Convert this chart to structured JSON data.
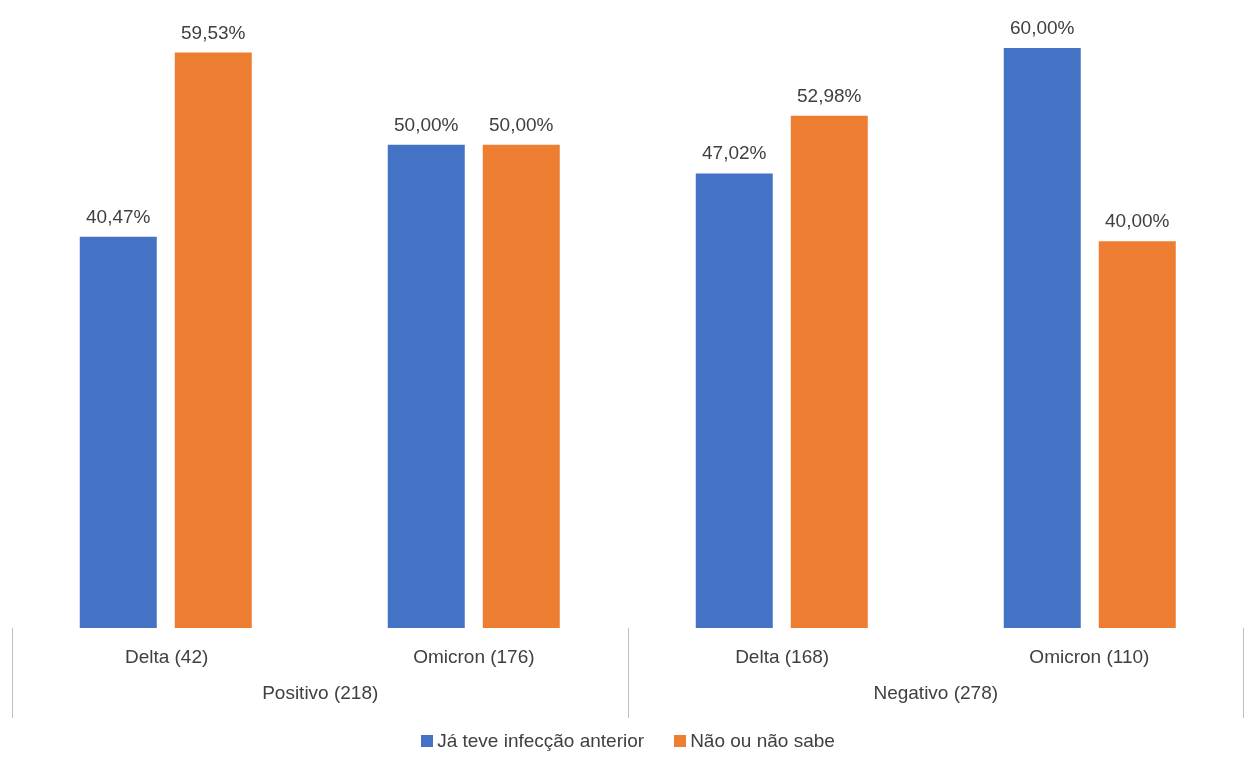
{
  "chart_data": {
    "type": "bar",
    "categories": [
      "Delta (42)",
      "Omicron (176)",
      "Delta (168)",
      "Omicron (110)"
    ],
    "annotations": [
      "Positivo (218)",
      "Negativo (278)"
    ],
    "series": [
      {
        "name": "Já teve infecção anterior",
        "color": "#4472c4",
        "values": [
          40.47,
          50,
          47.02,
          60
        ],
        "value_labels": [
          "40,47%",
          "50,00%",
          "47,02%",
          "60,00%"
        ]
      },
      {
        "name": "Não ou não sabe",
        "color": "#ed7d31",
        "values": [
          59.53,
          50,
          52.98,
          40
        ],
        "value_labels": [
          "59,53%",
          "50,00%",
          "52,98%",
          "40,00%"
        ]
      }
    ],
    "legend": "bottom",
    "grid": false
  }
}
